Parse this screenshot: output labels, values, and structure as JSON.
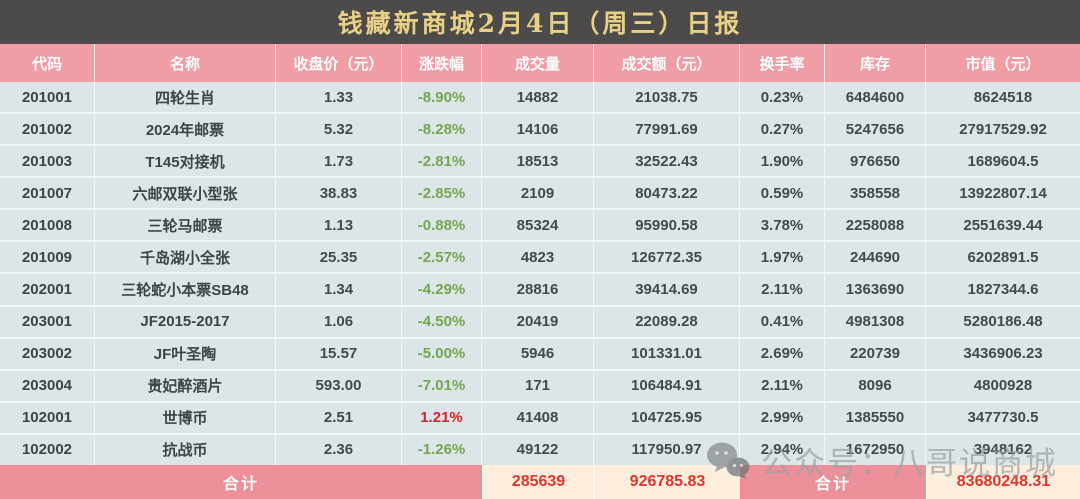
{
  "title": "钱藏新商城2月4日（周三）日报",
  "columns": [
    "代码",
    "名称",
    "收盘价（元）",
    "涨跌幅",
    "成交量",
    "成交额（元）",
    "换手率",
    "库存",
    "市值（元）"
  ],
  "rows": [
    {
      "code": "201001",
      "name": "四轮生肖",
      "close": "1.33",
      "change": "-8.90%",
      "volume": "14882",
      "turnover": "21038.75",
      "rate": "0.23%",
      "stock": "6484600",
      "cap": "8624518"
    },
    {
      "code": "201002",
      "name": "2024年邮票",
      "close": "5.32",
      "change": "-8.28%",
      "volume": "14106",
      "turnover": "77991.69",
      "rate": "0.27%",
      "stock": "5247656",
      "cap": "27917529.92"
    },
    {
      "code": "201003",
      "name": "T145对接机",
      "close": "1.73",
      "change": "-2.81%",
      "volume": "18513",
      "turnover": "32522.43",
      "rate": "1.90%",
      "stock": "976650",
      "cap": "1689604.5"
    },
    {
      "code": "201007",
      "name": "六邮双联小型张",
      "close": "38.83",
      "change": "-2.85%",
      "volume": "2109",
      "turnover": "80473.22",
      "rate": "0.59%",
      "stock": "358558",
      "cap": "13922807.14"
    },
    {
      "code": "201008",
      "name": "三轮马邮票",
      "close": "1.13",
      "change": "-0.88%",
      "volume": "85324",
      "turnover": "95990.58",
      "rate": "3.78%",
      "stock": "2258088",
      "cap": "2551639.44"
    },
    {
      "code": "201009",
      "name": "千岛湖小全张",
      "close": "25.35",
      "change": "-2.57%",
      "volume": "4823",
      "turnover": "126772.35",
      "rate": "1.97%",
      "stock": "244690",
      "cap": "6202891.5"
    },
    {
      "code": "202001",
      "name": "三轮蛇小本票SB48",
      "close": "1.34",
      "change": "-4.29%",
      "volume": "28816",
      "turnover": "39414.69",
      "rate": "2.11%",
      "stock": "1363690",
      "cap": "1827344.6"
    },
    {
      "code": "203001",
      "name": "JF2015-2017",
      "close": "1.06",
      "change": "-4.50%",
      "volume": "20419",
      "turnover": "22089.28",
      "rate": "0.41%",
      "stock": "4981308",
      "cap": "5280186.48"
    },
    {
      "code": "203002",
      "name": "JF叶圣陶",
      "close": "15.57",
      "change": "-5.00%",
      "volume": "5946",
      "turnover": "101331.01",
      "rate": "2.69%",
      "stock": "220739",
      "cap": "3436906.23"
    },
    {
      "code": "203004",
      "name": "贵妃醉酒片",
      "close": "593.00",
      "change": "-7.01%",
      "volume": "171",
      "turnover": "106484.91",
      "rate": "2.11%",
      "stock": "8096",
      "cap": "4800928"
    },
    {
      "code": "102001",
      "name": "世博币",
      "close": "2.51",
      "change": "1.21%",
      "volume": "41408",
      "turnover": "104725.95",
      "rate": "2.99%",
      "stock": "1385550",
      "cap": "3477730.5"
    },
    {
      "code": "102002",
      "name": "抗战币",
      "close": "2.36",
      "change": "-1.26%",
      "volume": "49122",
      "turnover": "117950.97",
      "rate": "2.94%",
      "stock": "1672950",
      "cap": "3948162"
    }
  ],
  "footer": {
    "label_left": "合计",
    "volume_total": "285639",
    "turnover_total": "926785.83",
    "label_right": "合计",
    "cap_total": "83680248.31"
  },
  "watermark": {
    "icon": "wechat-icon",
    "text": "公众号：八哥说商城"
  },
  "colors": {
    "title_bg": "#4c4b49",
    "title_text": "#e9d087",
    "header_bg": "#f19da5",
    "row_bg": "#dce5e7",
    "down_green": "#74a650",
    "up_red": "#d5232a",
    "footer_pink": "#ee909a",
    "footer_cream": "#fdeedd",
    "total_red": "#e0362d"
  }
}
